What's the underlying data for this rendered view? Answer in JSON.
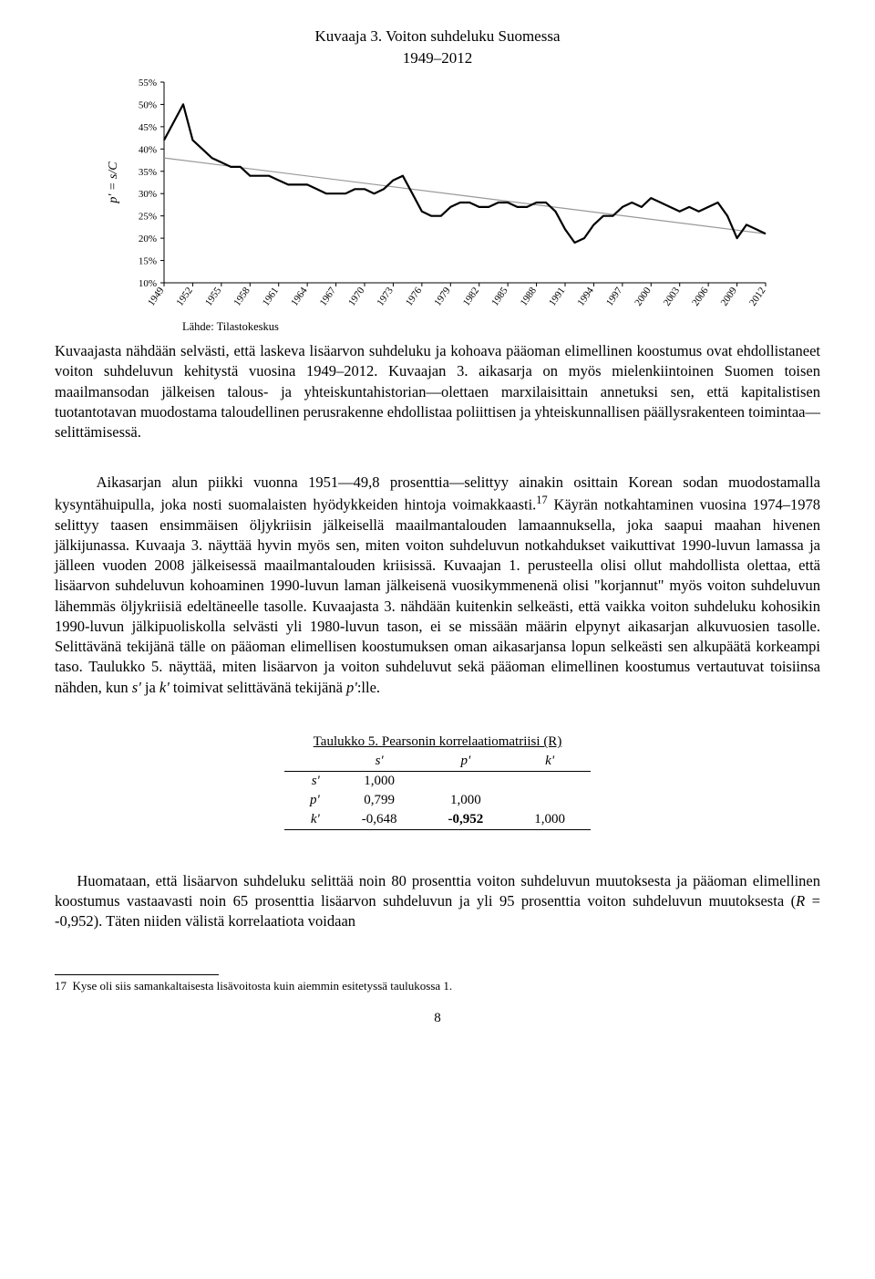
{
  "chart": {
    "title": "Kuvaaja 3. Voiton suhdeluku Suomessa",
    "subtitle": "1949–2012",
    "source_label": "Lähde: Tilastokeskus",
    "y_axis_label": "p' = s/C",
    "y_axis_label_fontstyle": "italic",
    "ylim": [
      10,
      55
    ],
    "ytick_step": 5,
    "y_ticks": [
      "10%",
      "15%",
      "20%",
      "25%",
      "30%",
      "35%",
      "40%",
      "45%",
      "50%",
      "55%"
    ],
    "x_ticks": [
      "1949",
      "1952",
      "1955",
      "1958",
      "1961",
      "1964",
      "1967",
      "1970",
      "1973",
      "1976",
      "1979",
      "1982",
      "1985",
      "1988",
      "1991",
      "1994",
      "1997",
      "2000",
      "2003",
      "2006",
      "2009",
      "2012"
    ],
    "years": [
      1949,
      1950,
      1951,
      1952,
      1953,
      1954,
      1955,
      1956,
      1957,
      1958,
      1959,
      1960,
      1961,
      1962,
      1963,
      1964,
      1965,
      1966,
      1967,
      1968,
      1969,
      1970,
      1971,
      1972,
      1973,
      1974,
      1975,
      1976,
      1977,
      1978,
      1979,
      1980,
      1981,
      1982,
      1983,
      1984,
      1985,
      1986,
      1987,
      1988,
      1989,
      1990,
      1991,
      1992,
      1993,
      1994,
      1995,
      1996,
      1997,
      1998,
      1999,
      2000,
      2001,
      2002,
      2003,
      2004,
      2005,
      2006,
      2007,
      2008,
      2009,
      2010,
      2011,
      2012
    ],
    "values": [
      42,
      46,
      50,
      42,
      40,
      38,
      37,
      36,
      36,
      34,
      34,
      34,
      33,
      32,
      32,
      32,
      31,
      30,
      30,
      30,
      31,
      31,
      30,
      31,
      33,
      34,
      30,
      26,
      25,
      25,
      27,
      28,
      28,
      27,
      27,
      28,
      28,
      27,
      27,
      28,
      28,
      26,
      22,
      19,
      20,
      23,
      25,
      25,
      27,
      28,
      27,
      29,
      28,
      27,
      26,
      27,
      26,
      27,
      28,
      25,
      20,
      23,
      22,
      21
    ],
    "trend_start": 38,
    "trend_end": 21,
    "line_color": "#000000",
    "trend_color": "#999999",
    "background_color": "#ffffff",
    "axis_color": "#000000",
    "line_width": 2.2,
    "trend_width": 1.2,
    "font_size_ticks": 11,
    "font_size_axis_label": 14
  },
  "body": {
    "p1": "Kuvaajasta nähdään selvästi, että laskeva lisäarvon suhdeluku ja kohoava pääoman elimellinen koostumus ovat ehdollistaneet voiton suhdeluvun kehitystä vuosina 1949–2012. Kuvaajan 3. aikasarja on myös mielenkiintoinen Suomen toisen maailmansodan jälkeisen talous- ja yhteiskuntahistorian—olettaen marxilaisittain annetuksi sen, että kapitalistisen tuotantotavan muodostama taloudellinen perusrakenne ehdollistaa poliittisen ja yhteiskunnallisen päällysrakenteen toimintaa—selittämisessä.",
    "p2_a": "Aikasarjan alun piikki vuonna 1951—49,8 prosenttia—selittyy ainakin osittain Korean sodan muodostamalla kysyntähuipulla, joka nosti suomalaisten hyödykkeiden hintoja voimakkaasti.",
    "p2_sup": "17",
    "p2_b": " Käyrän notkahtaminen vuosina 1974–1978 selittyy taasen ensimmäisen öljykriisin jälkeisellä maailmantalouden lamaannuksella, joka saapui maahan hivenen jälkijunassa. Kuvaaja 3. näyttää hyvin myös sen, miten voiton suhdeluvun notkahdukset vaikuttivat 1990-luvun lamassa ja jälleen vuoden 2008 jälkeisessä maailmantalouden kriisissä. Kuvaajan 1. perusteella olisi ollut mahdollista olettaa, että lisäarvon suhdeluvun kohoaminen 1990-luvun laman jälkeisenä vuosikymmenenä olisi \"korjannut\" myös voiton suhdeluvun lähemmäs öljykriisiä edeltäneelle tasolle. Kuvaajasta 3. nähdään kuitenkin selkeästi, että vaikka voiton suhdeluku kohosikin 1990-luvun jälkipuoliskolla selvästi yli 1980-luvun tason, ei se missään määrin elpynyt aikasarjan alkuvuosien tasolle. Selittävänä tekijänä tälle on pääoman elimellisen koostumuksen oman aikasarjansa lopun selkeästi sen alkupäätä korkeampi taso. Taulukko 5. näyttää, miten lisäarvon ja voiton suhdeluvut sekä pääoman elimellinen koostumus vertautuvat toisiinsa nähden, kun ",
    "p2_c": " ja ",
    "p2_d": " toimivat selittävänä tekijänä ",
    "p2_e": ":lle.",
    "var_s": "s'",
    "var_k": "k'",
    "var_p": "p'"
  },
  "table": {
    "title": "Taulukko 5. Pearsonin korrelaatiomatriisi (R)",
    "col_headers": [
      "s'",
      "p'",
      "k'"
    ],
    "row_headers": [
      "s'",
      "p'",
      "k'"
    ],
    "cells": [
      [
        "1,000",
        "",
        ""
      ],
      [
        "0,799",
        "1,000",
        ""
      ],
      [
        "-0,648",
        "-0,952",
        "1,000"
      ]
    ],
    "bold_cell": {
      "row": 2,
      "col": 1
    }
  },
  "p3_a": "Huomataan, että lisäarvon suhdeluku selittää noin 80 prosenttia voiton suhdeluvun muutoksesta ja pääoman elimellinen koostumus vastaavasti noin 65 prosenttia lisäarvon suhdeluvun ja yli 95 prosenttia voiton suhdeluvun muutoksesta (",
  "p3_R": "R",
  "p3_b": " = -0,952). Täten niiden välistä korrelaatiota voidaan",
  "footnote": {
    "num": "17",
    "text": "Kyse oli siis samankaltaisesta lisävoitosta kuin aiemmin esitetyssä taulukossa 1."
  },
  "page_number": "8"
}
